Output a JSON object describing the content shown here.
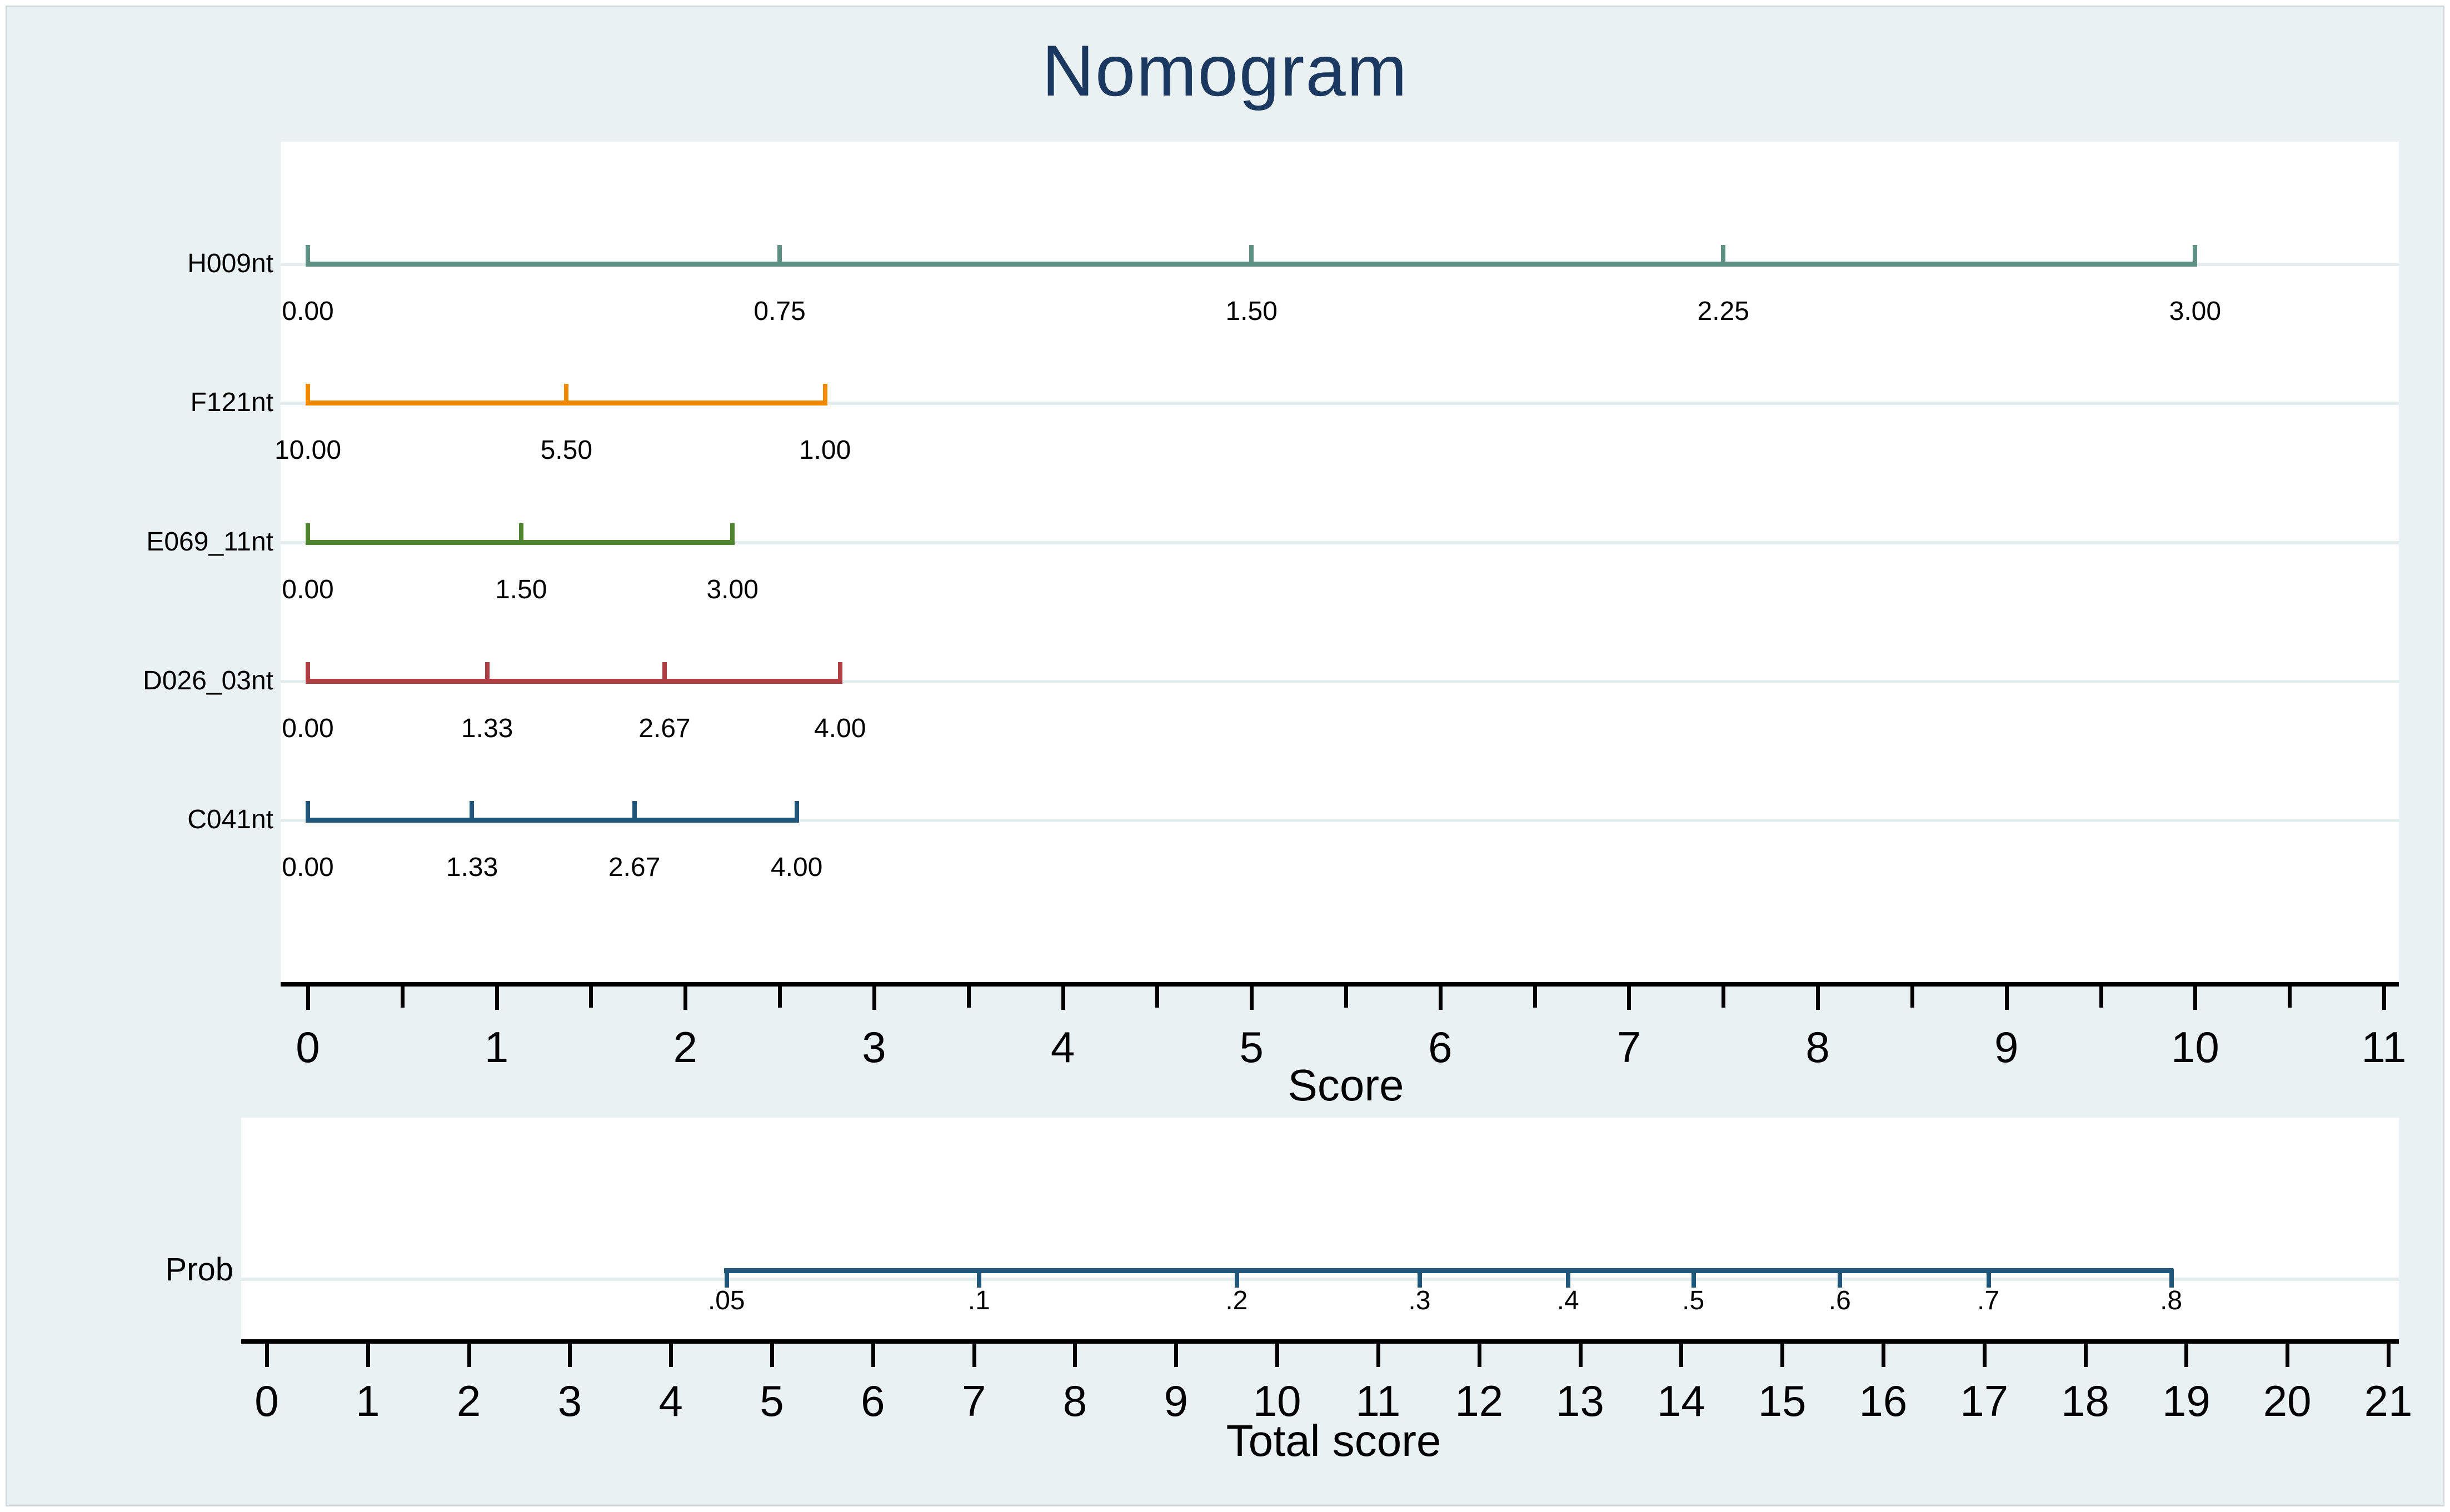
{
  "title": "Nomogram",
  "colors": {
    "figure_background": "#E9F1F2",
    "panel_background": "#FFFFFF",
    "title_color": "#1A3860",
    "axis_color": "#000000",
    "gridline_color": "#E5EDEF"
  },
  "chart_data": {
    "type": "line",
    "variant": "nomogram",
    "title": "Nomogram",
    "panels": [
      {
        "name": "predictor-scales",
        "xlabel": "Score",
        "xlim": [
          0,
          11
        ],
        "x_major_tick_labels": [
          "0",
          "1",
          "2",
          "3",
          "4",
          "5",
          "6",
          "7",
          "8",
          "9",
          "10",
          "11"
        ],
        "x_minor_step": 0.5,
        "grid": true,
        "rows": [
          {
            "label": "H009nt",
            "color": "#5F9084",
            "ticks": [
              {
                "value": "0.00",
                "score": 0.0
              },
              {
                "value": "0.75",
                "score": 2.5
              },
              {
                "value": "1.50",
                "score": 5.0
              },
              {
                "value": "2.25",
                "score": 7.5
              },
              {
                "value": "3.00",
                "score": 10.0
              }
            ]
          },
          {
            "label": "F121nt",
            "color": "#F28A00",
            "ticks": [
              {
                "value": "10.00",
                "score": 0.0
              },
              {
                "value": "5.50",
                "score": 1.37
              },
              {
                "value": "1.00",
                "score": 2.74
              }
            ]
          },
          {
            "label": "E069_11nt",
            "color": "#4E8430",
            "ticks": [
              {
                "value": "0.00",
                "score": 0.0
              },
              {
                "value": "1.50",
                "score": 1.13
              },
              {
                "value": "3.00",
                "score": 2.25
              }
            ]
          },
          {
            "label": "D026_03nt",
            "color": "#AE3F44",
            "ticks": [
              {
                "value": "0.00",
                "score": 0.0
              },
              {
                "value": "1.33",
                "score": 0.95
              },
              {
                "value": "2.67",
                "score": 1.89
              },
              {
                "value": "4.00",
                "score": 2.82
              }
            ]
          },
          {
            "label": "C041nt",
            "color": "#1F567A",
            "ticks": [
              {
                "value": "0.00",
                "score": 0.0
              },
              {
                "value": "1.33",
                "score": 0.87
              },
              {
                "value": "2.67",
                "score": 1.73
              },
              {
                "value": "4.00",
                "score": 2.59
              }
            ]
          }
        ]
      },
      {
        "name": "probability-scale",
        "xlabel": "Total score",
        "xlim": [
          0,
          21
        ],
        "x_major_tick_labels": [
          "0",
          "1",
          "2",
          "3",
          "4",
          "5",
          "6",
          "7",
          "8",
          "9",
          "10",
          "11",
          "12",
          "13",
          "14",
          "15",
          "16",
          "17",
          "18",
          "19",
          "20",
          "21"
        ],
        "grid": true,
        "rows": [
          {
            "label": "Prob",
            "color": "#1F567A",
            "ticks": [
              {
                "value": ".05",
                "total_score": 4.55
              },
              {
                "value": ".1",
                "total_score": 7.05
              },
              {
                "value": ".2",
                "total_score": 9.6
              },
              {
                "value": ".3",
                "total_score": 11.41
              },
              {
                "value": ".4",
                "total_score": 12.88
              },
              {
                "value": ".5",
                "total_score": 14.12
              },
              {
                "value": ".6",
                "total_score": 15.57
              },
              {
                "value": ".7",
                "total_score": 17.04
              },
              {
                "value": ".8",
                "total_score": 18.85
              }
            ]
          }
        ]
      }
    ]
  }
}
